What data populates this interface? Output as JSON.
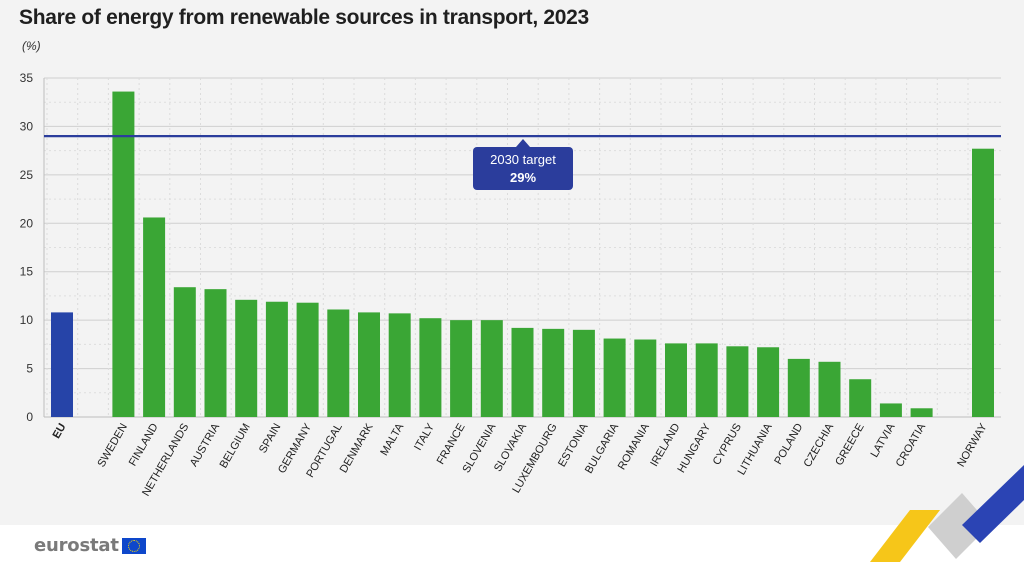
{
  "chart_data": {
    "type": "bar",
    "title": "Share of energy from renewable sources in transport, 2023",
    "unit": "(%)",
    "categories": [
      "EU",
      "SWEDEN",
      "FINLAND",
      "NETHERLANDS",
      "AUSTRIA",
      "BELGIUM",
      "SPAIN",
      "GERMANY",
      "PORTUGAL",
      "DENMARK",
      "MALTA",
      "ITALY",
      "FRANCE",
      "SLOVENIA",
      "SLOVAKIA",
      "LUXEMBOURG",
      "ESTONIA",
      "BULGARIA",
      "ROMANIA",
      "IRELAND",
      "HUNGARY",
      "CYPRUS",
      "LITHUANIA",
      "POLAND",
      "CZECHIA",
      "GREECE",
      "LATVIA",
      "CROATIA",
      "NORWAY"
    ],
    "values": [
      10.8,
      33.6,
      20.6,
      13.4,
      13.2,
      12.1,
      11.9,
      11.8,
      11.1,
      10.8,
      10.7,
      10.2,
      10.0,
      10.0,
      9.2,
      9.1,
      9.0,
      8.1,
      8.0,
      7.6,
      7.6,
      7.3,
      7.2,
      6.0,
      5.7,
      3.9,
      1.4,
      0.9,
      27.7
    ],
    "colors": {
      "eu": "#2644a8",
      "country": "#3aa635",
      "target_line": "#2b3d9c"
    },
    "ylim": [
      0,
      35
    ],
    "yticks": [
      0,
      5,
      10,
      15,
      20,
      25,
      30,
      35
    ],
    "grid": true,
    "reference_line": {
      "value": 29,
      "label_line1": "2030 target",
      "label_line2": "29%"
    }
  },
  "branding": {
    "logo_text": "eurostat",
    "flag_icon": "eu-flag-icon"
  }
}
